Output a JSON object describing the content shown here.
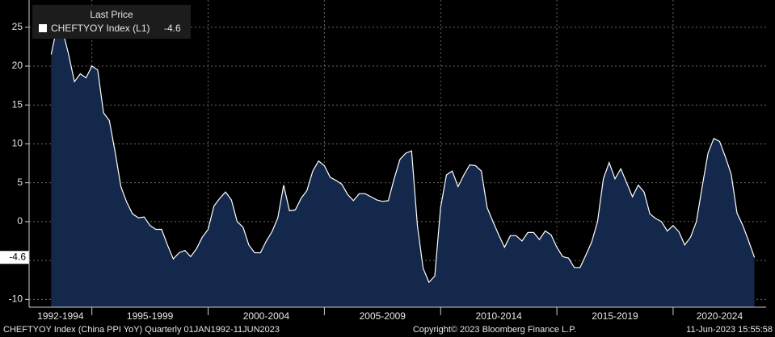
{
  "chart_data": {
    "type": "area",
    "legend_title": "Last Price",
    "series": [
      {
        "name": "CHEFTYOY Index (L1)",
        "color": "#ffffff",
        "fill": "#13284a",
        "values": [
          21.5,
          25,
          24.5,
          21.5,
          18,
          19,
          18.5,
          20,
          19.5,
          14,
          13,
          9,
          4.5,
          2.5,
          1,
          0.5,
          0.6,
          -0.5,
          -1,
          -1,
          -3,
          -4.8,
          -4,
          -3.7,
          -4.5,
          -3.5,
          -2,
          -1,
          2,
          3,
          3.8,
          2.8,
          0,
          -0.7,
          -3,
          -4,
          -4,
          -2.5,
          -1.3,
          0.5,
          4.7,
          1.4,
          1.5,
          3,
          4,
          6.5,
          7.8,
          7.2,
          5.7,
          5.3,
          4.8,
          3.5,
          2.7,
          3.6,
          3.6,
          3.2,
          2.8,
          2.6,
          2.7,
          5.5,
          8,
          8.8,
          9.1,
          -0.5,
          -6,
          -7.8,
          -7,
          1.8,
          6,
          6.5,
          4.5,
          6,
          7.3,
          7.2,
          6.5,
          1.8,
          0,
          -1.7,
          -3.3,
          -1.8,
          -1.8,
          -2.5,
          -1.4,
          -1.4,
          -2.3,
          -1.2,
          -1.7,
          -3.3,
          -4.5,
          -4.7,
          -5.9,
          -5.9,
          -4.3,
          -2.6,
          0,
          5.5,
          7.6,
          5.5,
          6.8,
          5,
          3.2,
          4.7,
          3.8,
          1,
          0.4,
          0,
          -1.2,
          -0.5,
          -1.3,
          -3,
          -2,
          0,
          4.5,
          8.8,
          10.7,
          10.3,
          8.3,
          6.1,
          1.1,
          -0.5,
          -2.5,
          -4.6
        ]
      }
    ],
    "x": [
      1993.25,
      1993.5,
      1993.75,
      1994,
      1994.25,
      1994.5,
      1994.75,
      1995,
      1995.25,
      1995.5,
      1995.75,
      1996,
      1996.25,
      1996.5,
      1996.75,
      1997,
      1997.25,
      1997.5,
      1997.75,
      1998,
      1998.25,
      1998.5,
      1998.75,
      1999,
      1999.25,
      1999.5,
      1999.75,
      2000,
      2000.25,
      2000.5,
      2000.75,
      2001,
      2001.25,
      2001.5,
      2001.75,
      2002,
      2002.25,
      2002.5,
      2002.75,
      2003,
      2003.25,
      2003.5,
      2003.75,
      2004,
      2004.25,
      2004.5,
      2004.75,
      2005,
      2005.25,
      2005.5,
      2005.75,
      2006,
      2006.25,
      2006.5,
      2006.75,
      2007,
      2007.25,
      2007.5,
      2007.75,
      2008,
      2008.25,
      2008.5,
      2008.75,
      2009,
      2009.25,
      2009.5,
      2009.75,
      2010,
      2010.25,
      2010.5,
      2010.75,
      2011,
      2011.25,
      2011.5,
      2011.75,
      2012,
      2012.25,
      2012.5,
      2012.75,
      2013,
      2013.25,
      2013.5,
      2013.75,
      2014,
      2014.25,
      2014.5,
      2014.75,
      2015,
      2015.25,
      2015.5,
      2015.75,
      2016,
      2016.25,
      2016.5,
      2016.75,
      2017,
      2017.25,
      2017.5,
      2017.75,
      2018,
      2018.25,
      2018.5,
      2018.75,
      2019,
      2019.25,
      2019.5,
      2019.75,
      2020,
      2020.25,
      2020.5,
      2020.75,
      2021,
      2021.25,
      2021.5,
      2021.75,
      2022,
      2022.25,
      2022.5,
      2022.75,
      2023,
      2023.25,
      2023.5
    ],
    "categories": [
      "1992-1994",
      "1995-1999",
      "2000-2004",
      "2005-2009",
      "2010-2014",
      "2015-2019",
      "2020-2024"
    ],
    "xlim": [
      1992.3,
      2024
    ],
    "xticks": [
      1995,
      2000,
      2005,
      2010,
      2015,
      2020
    ],
    "ylim": [
      -11,
      28.5
    ],
    "yticks": [
      25,
      20,
      15,
      10,
      5,
      0,
      -5,
      -10
    ],
    "grid": true,
    "footer": {
      "left": "CHEFTYOY Index (China PPI YoY)  Quarterly 01JAN1992-11JUN2023",
      "center": "Copyright© 2023 Bloomberg Finance L.P.",
      "right": "11-Jun-2023 15:55:58"
    }
  }
}
